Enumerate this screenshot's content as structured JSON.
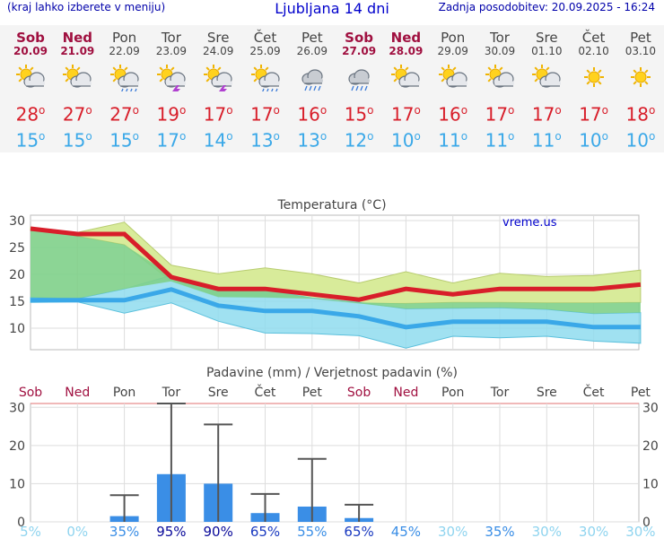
{
  "header": {
    "hint": "(kraj lahko izberete v meniju)",
    "title": "Ljubljana 14 dni",
    "updated": "Zadnja posodobitev: 20.09.2025 - 16:24"
  },
  "days": [
    {
      "name": "Sob",
      "date": "20.09",
      "weekend": true,
      "icon": "sun-cloud",
      "tmax": "28",
      "tmin": "15"
    },
    {
      "name": "Ned",
      "date": "21.09",
      "weekend": true,
      "icon": "sun-cloud",
      "tmax": "27",
      "tmin": "15"
    },
    {
      "name": "Pon",
      "date": "22.09",
      "weekend": false,
      "icon": "sun-cloud-rain",
      "tmax": "27",
      "tmin": "15"
    },
    {
      "name": "Tor",
      "date": "23.09",
      "weekend": false,
      "icon": "sun-cloud-storm",
      "tmax": "19",
      "tmin": "17"
    },
    {
      "name": "Sre",
      "date": "24.09",
      "weekend": false,
      "icon": "sun-cloud-storm",
      "tmax": "17",
      "tmin": "14"
    },
    {
      "name": "Čet",
      "date": "25.09",
      "weekend": false,
      "icon": "sun-cloud-rain",
      "tmax": "17",
      "tmin": "13"
    },
    {
      "name": "Pet",
      "date": "26.09",
      "weekend": false,
      "icon": "cloud-rain",
      "tmax": "16",
      "tmin": "13"
    },
    {
      "name": "Sob",
      "date": "27.09",
      "weekend": true,
      "icon": "cloud-rain",
      "tmax": "15",
      "tmin": "12"
    },
    {
      "name": "Ned",
      "date": "28.09",
      "weekend": true,
      "icon": "sun-cloud",
      "tmax": "17",
      "tmin": "10"
    },
    {
      "name": "Pon",
      "date": "29.09",
      "weekend": false,
      "icon": "sun-cloud",
      "tmax": "16",
      "tmin": "11"
    },
    {
      "name": "Tor",
      "date": "30.09",
      "weekend": false,
      "icon": "sun-cloud",
      "tmax": "17",
      "tmin": "11"
    },
    {
      "name": "Sre",
      "date": "01.10",
      "weekend": false,
      "icon": "sun-cloud",
      "tmax": "17",
      "tmin": "11"
    },
    {
      "name": "Čet",
      "date": "02.10",
      "weekend": false,
      "icon": "sun",
      "tmax": "17",
      "tmin": "10"
    },
    {
      "name": "Pet",
      "date": "03.10",
      "weekend": false,
      "icon": "sun",
      "tmax": "18",
      "tmin": "10"
    }
  ],
  "degree_symbol": "o",
  "colors": {
    "max": "#d81e2a",
    "min": "#3aa8e8",
    "weekend": "#a01040",
    "bars": "#3a8ee6",
    "band_max": "#d8eb9a",
    "band_min": "#8fdcef",
    "band_overlap": "#7fd08a"
  },
  "chart_data": [
    {
      "type": "line",
      "title": "Temperatura (°C)",
      "watermark": "vreme.us",
      "yticks": [
        "10",
        "15",
        "20",
        "25",
        "30"
      ],
      "ylim": [
        6,
        31
      ],
      "grid": true,
      "series": [
        {
          "role": "max",
          "values": [
            28.5,
            27.5,
            27.5,
            19.5,
            17.3,
            17.3,
            16.3,
            15.3,
            17.3,
            16.3,
            17.3,
            17.3,
            17.3,
            18.1
          ]
        },
        {
          "role": "min",
          "values": [
            15.2,
            15.2,
            15.2,
            17.2,
            14.2,
            13.2,
            13.2,
            12.2,
            10.2,
            11.2,
            11.2,
            11.2,
            10.2,
            10.2
          ]
        }
      ],
      "bands": [
        {
          "role": "max-range",
          "upper": [
            28.7,
            27.8,
            29.7,
            21.7,
            20.1,
            21.2,
            20.1,
            18.4,
            20.5,
            18.4,
            20.2,
            19.6,
            19.8,
            20.8
          ],
          "lower": [
            28.3,
            27.1,
            25.5,
            18.7,
            15.8,
            15.7,
            15.5,
            14.6,
            14.6,
            14.8,
            14.8,
            14.7,
            14.7,
            14.8
          ]
        },
        {
          "role": "min-range",
          "upper": [
            15.7,
            15.5,
            17.3,
            19.8,
            17.3,
            17.1,
            15.6,
            14.8,
            13.6,
            13.7,
            13.8,
            13.5,
            12.7,
            12.9
          ],
          "lower": [
            14.8,
            14.9,
            12.8,
            14.7,
            11.3,
            9.1,
            9.0,
            8.6,
            6.3,
            8.5,
            8.2,
            8.5,
            7.6,
            7.2
          ]
        }
      ]
    },
    {
      "type": "bar",
      "title": "Padavine (mm) / Verjetnost padavin (%)",
      "categories": [
        "Sob",
        "Ned",
        "Pon",
        "Tor",
        "Sre",
        "Čet",
        "Pet",
        "Sob",
        "Ned",
        "Pon",
        "Tor",
        "Sre",
        "Čet",
        "Pet"
      ],
      "yticks": [
        "0",
        "10",
        "20",
        "30"
      ],
      "ylim": [
        0,
        31
      ],
      "values": [
        0,
        0,
        1.5,
        12.5,
        10,
        2.3,
        4,
        1,
        0,
        0,
        0,
        0,
        0,
        0
      ],
      "error_high": [
        null,
        null,
        7,
        31,
        25.5,
        7.3,
        16.5,
        4.5,
        null,
        null,
        null,
        null,
        null,
        null
      ],
      "probability": [
        "5%",
        "0%",
        "35%",
        "95%",
        "90%",
        "65%",
        "55%",
        "65%",
        "45%",
        "30%",
        "35%",
        "30%",
        "30%",
        "30%"
      ]
    }
  ]
}
